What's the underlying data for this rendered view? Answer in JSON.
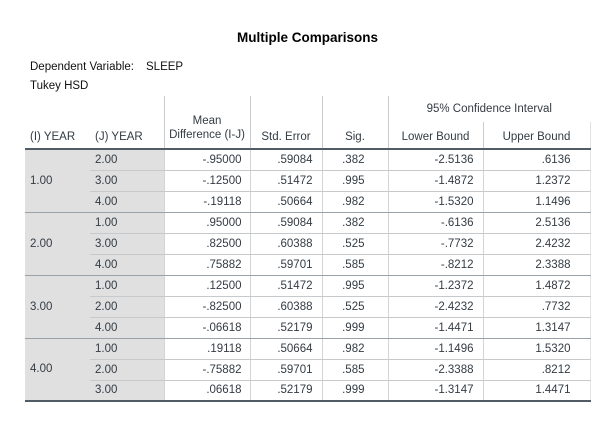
{
  "title": "Multiple Comparisons",
  "meta": {
    "dependent_variable_label": "Dependent Variable:",
    "dependent_variable_value": "SLEEP",
    "test_label": "Tukey HSD"
  },
  "table": {
    "ci_header": "95% Confidence Interval",
    "columns": {
      "i_year": "(I) YEAR",
      "j_year": "(J) YEAR",
      "mean_diff_line1": "Mean",
      "mean_diff_line2": "Difference (I-J)",
      "std_error": "Std. Error",
      "sig": "Sig.",
      "lower_bound": "Lower Bound",
      "upper_bound": "Upper Bound"
    },
    "groups": [
      {
        "i": "1.00",
        "rows": [
          {
            "cells": [
              "2.00",
              "-.95000",
              ".59084",
              ".382",
              "-2.5136",
              ".6136"
            ]
          },
          {
            "cells": [
              "3.00",
              "-.12500",
              ".51472",
              ".995",
              "-1.4872",
              "1.2372"
            ]
          },
          {
            "cells": [
              "4.00",
              "-.19118",
              ".50664",
              ".982",
              "-1.5320",
              "1.1496"
            ]
          }
        ]
      },
      {
        "i": "2.00",
        "rows": [
          {
            "cells": [
              "1.00",
              ".95000",
              ".59084",
              ".382",
              "-.6136",
              "2.5136"
            ]
          },
          {
            "cells": [
              "3.00",
              ".82500",
              ".60388",
              ".525",
              "-.7732",
              "2.4232"
            ]
          },
          {
            "cells": [
              "4.00",
              ".75882",
              ".59701",
              ".585",
              "-.8212",
              "2.3388"
            ]
          }
        ]
      },
      {
        "i": "3.00",
        "rows": [
          {
            "cells": [
              "1.00",
              ".12500",
              ".51472",
              ".995",
              "-1.2372",
              "1.4872"
            ]
          },
          {
            "cells": [
              "2.00",
              "-.82500",
              ".60388",
              ".525",
              "-2.4232",
              ".7732"
            ]
          },
          {
            "cells": [
              "4.00",
              "-.06618",
              ".52179",
              ".999",
              "-1.4471",
              "1.3147"
            ]
          }
        ]
      },
      {
        "i": "4.00",
        "rows": [
          {
            "cells": [
              "1.00",
              ".19118",
              ".50664",
              ".982",
              "-1.1496",
              "1.5320"
            ]
          },
          {
            "cells": [
              "2.00",
              "-.75882",
              ".59701",
              ".585",
              "-2.3388",
              ".8212"
            ]
          },
          {
            "cells": [
              "3.00",
              ".06618",
              ".52179",
              ".999",
              "-1.3147",
              "1.4471"
            ]
          }
        ]
      }
    ]
  },
  "colors": {
    "stub_background": "#e0e0e0",
    "dark_border": "#515c66",
    "group_border": "#9aa1a8",
    "thin_border": "#c7cacd",
    "column_divider": "#d2d5d8",
    "table_text": "#333b43"
  }
}
